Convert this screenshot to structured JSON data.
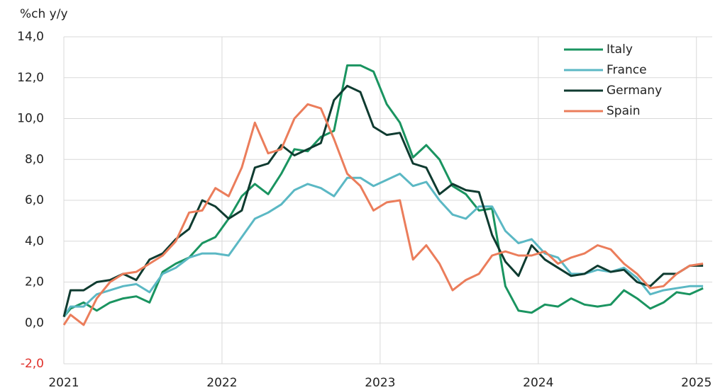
{
  "chart_data": {
    "type": "line",
    "y_axis_label": "%ch y/y",
    "x": [
      2021,
      2021.042,
      2021.125,
      2021.208,
      2021.292,
      2021.375,
      2021.458,
      2021.542,
      2021.625,
      2021.708,
      2021.792,
      2021.875,
      2021.958,
      2022.042,
      2022.125,
      2022.208,
      2022.292,
      2022.375,
      2022.458,
      2022.542,
      2022.625,
      2022.708,
      2022.792,
      2022.875,
      2022.958,
      2023.042,
      2023.125,
      2023.208,
      2023.292,
      2023.375,
      2023.458,
      2023.542,
      2023.625,
      2023.708,
      2023.792,
      2023.875,
      2023.958,
      2024.042,
      2024.125,
      2024.208,
      2024.292,
      2024.375,
      2024.458,
      2024.542,
      2024.625,
      2024.708,
      2024.792,
      2024.875,
      2024.958,
      2025.042
    ],
    "series": [
      {
        "name": "Italy",
        "color": "#1a9460",
        "values": [
          0.3,
          0.7,
          1.0,
          0.6,
          1.0,
          1.2,
          1.3,
          1.0,
          2.5,
          2.9,
          3.2,
          3.9,
          4.2,
          5.1,
          6.2,
          6.8,
          6.3,
          7.3,
          8.5,
          8.4,
          9.1,
          9.4,
          12.6,
          12.6,
          12.3,
          10.7,
          9.8,
          8.1,
          8.7,
          8.0,
          6.7,
          6.3,
          5.5,
          5.6,
          1.8,
          0.6,
          0.5,
          0.9,
          0.8,
          1.2,
          0.9,
          0.8,
          0.9,
          1.6,
          1.2,
          0.7,
          1.0,
          1.5,
          1.4,
          1.7
        ]
      },
      {
        "name": "France",
        "color": "#5bb8c4",
        "values": [
          0.3,
          0.8,
          0.8,
          1.4,
          1.6,
          1.8,
          1.9,
          1.5,
          2.4,
          2.7,
          3.2,
          3.4,
          3.4,
          3.3,
          4.2,
          5.1,
          5.4,
          5.8,
          6.5,
          6.8,
          6.6,
          6.2,
          7.1,
          7.1,
          6.7,
          7.0,
          7.3,
          6.7,
          6.9,
          6.0,
          5.3,
          5.1,
          5.7,
          5.7,
          4.5,
          3.9,
          4.1,
          3.4,
          3.2,
          2.4,
          2.4,
          2.6,
          2.5,
          2.7,
          2.2,
          1.4,
          1.6,
          1.7,
          1.8,
          1.8
        ]
      },
      {
        "name": "Germany",
        "color": "#0f3b30",
        "values": [
          0.3,
          1.6,
          1.6,
          2.0,
          2.1,
          2.4,
          2.1,
          3.1,
          3.4,
          4.1,
          4.6,
          6.0,
          5.7,
          5.1,
          5.5,
          7.6,
          7.8,
          8.7,
          8.2,
          8.5,
          8.8,
          10.9,
          11.6,
          11.3,
          9.6,
          9.2,
          9.3,
          7.8,
          7.6,
          6.3,
          6.8,
          6.5,
          6.4,
          4.3,
          3.0,
          2.3,
          3.8,
          3.1,
          2.7,
          2.3,
          2.4,
          2.8,
          2.5,
          2.6,
          2.0,
          1.8,
          2.4,
          2.4,
          2.8,
          2.8
        ]
      },
      {
        "name": "Spain",
        "color": "#eb7d5b",
        "values": [
          -0.1,
          0.4,
          -0.1,
          1.2,
          2.0,
          2.4,
          2.5,
          2.9,
          3.3,
          4.0,
          5.4,
          5.5,
          6.6,
          6.2,
          7.6,
          9.8,
          8.3,
          8.5,
          10.0,
          10.7,
          10.5,
          9.0,
          7.3,
          6.7,
          5.5,
          5.9,
          6.0,
          3.1,
          3.8,
          2.9,
          1.6,
          2.1,
          2.4,
          3.3,
          3.5,
          3.3,
          3.3,
          3.5,
          2.9,
          3.2,
          3.4,
          3.8,
          3.6,
          2.9,
          2.4,
          1.7,
          1.8,
          2.4,
          2.8,
          2.9
        ]
      }
    ],
    "xlim": [
      2021,
      2025.1
    ],
    "xticks": [
      2021,
      2022,
      2023,
      2024,
      2025
    ],
    "ylim": [
      -2,
      14
    ],
    "yticks": [
      {
        "value": -2,
        "label": "-2,0"
      },
      {
        "value": 0,
        "label": "0,0"
      },
      {
        "value": 2,
        "label": "2,0"
      },
      {
        "value": 4,
        "label": "4,0"
      },
      {
        "value": 6,
        "label": "6,0"
      },
      {
        "value": 8,
        "label": "8,0"
      },
      {
        "value": 10,
        "label": "10,0"
      },
      {
        "value": 12,
        "label": "12,0"
      },
      {
        "value": 14,
        "label": "14,0"
      }
    ],
    "negative_tick_color": "#e0302a",
    "grid": true,
    "legend": "upper right"
  }
}
